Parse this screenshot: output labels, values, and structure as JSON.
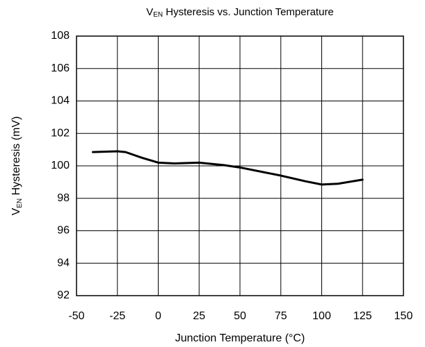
{
  "chart_data": {
    "type": "line",
    "title_parts": [
      "V",
      "EN",
      " Hysteresis vs. Junction Temperature"
    ],
    "ylabel_parts": [
      "V",
      "EN",
      " Hysteresis (mV)"
    ],
    "xlabel": "Junction Temperature (°C)",
    "x": [
      -40,
      -25,
      -20,
      -10,
      0,
      10,
      25,
      40,
      50,
      75,
      90,
      100,
      110,
      125
    ],
    "series": [
      {
        "name": "VEN Hysteresis",
        "color": "#000000",
        "values": [
          100.85,
          100.9,
          100.85,
          100.5,
          100.2,
          100.15,
          100.2,
          100.05,
          99.9,
          99.4,
          99.05,
          98.85,
          98.9,
          99.15
        ]
      }
    ],
    "xlim": [
      -50,
      150
    ],
    "xticks": [
      -50,
      -25,
      0,
      25,
      50,
      75,
      100,
      125,
      150
    ],
    "ylim": [
      92,
      108
    ],
    "yticks": [
      92,
      94,
      96,
      98,
      100,
      102,
      104,
      106,
      108
    ],
    "grid": true
  }
}
